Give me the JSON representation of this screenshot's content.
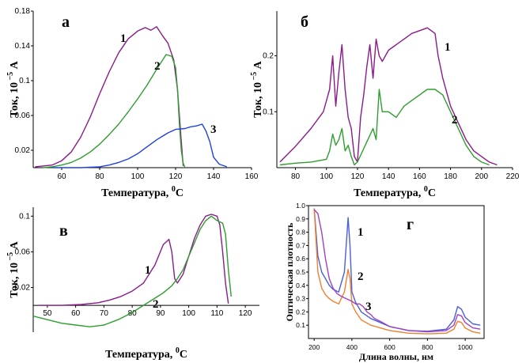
{
  "chart_data": [
    {
      "id": "a",
      "type": "line",
      "panel_letter": "а",
      "xlabel": "Температура, ",
      "xlabel_sup": "0",
      "xlabel_unit": "C",
      "ylabel": "Ток, 10",
      "ylabel_sup": " −5",
      "ylabel_unit": " А",
      "xlim": [
        45,
        160
      ],
      "ylim": [
        0,
        0.18
      ],
      "xticks": [
        60,
        80,
        100,
        120,
        140,
        160
      ],
      "yticks": [
        0.02,
        0.06,
        0.1,
        0.14,
        0.18
      ],
      "ytick_labels": [
        "0.02",
        "0.06",
        "0.1",
        "0.14",
        "0.18"
      ],
      "series": [
        {
          "label": "1",
          "color": "#8b1a8b",
          "x": [
            46,
            55,
            60,
            65,
            70,
            75,
            80,
            85,
            90,
            95,
            100,
            104,
            107,
            110,
            113,
            116,
            119,
            121,
            123,
            124
          ],
          "y": [
            0.001,
            0.003,
            0.008,
            0.018,
            0.035,
            0.058,
            0.085,
            0.11,
            0.132,
            0.148,
            0.157,
            0.161,
            0.158,
            0.162,
            0.152,
            0.143,
            0.124,
            0.09,
            0.03,
            0.002
          ]
        },
        {
          "label": "2",
          "color": "#2e9e2e",
          "x": [
            50,
            55,
            60,
            65,
            70,
            75,
            80,
            85,
            90,
            95,
            100,
            105,
            110,
            115,
            118,
            120,
            121,
            122,
            123,
            124,
            125
          ],
          "y": [
            0.0,
            0.001,
            0.003,
            0.006,
            0.011,
            0.018,
            0.027,
            0.038,
            0.05,
            0.064,
            0.079,
            0.095,
            0.113,
            0.13,
            0.128,
            0.115,
            0.09,
            0.05,
            0.02,
            0.005,
            0.0
          ]
        },
        {
          "label": "3",
          "color": "#2040e0",
          "x": [
            55,
            70,
            80,
            85,
            90,
            95,
            100,
            105,
            110,
            113,
            116,
            120,
            125,
            128,
            131,
            134,
            136,
            138,
            140,
            143,
            147
          ],
          "y": [
            0.0,
            0.0,
            0.001,
            0.003,
            0.006,
            0.01,
            0.016,
            0.024,
            0.032,
            0.036,
            0.04,
            0.044,
            0.045,
            0.047,
            0.048,
            0.05,
            0.042,
            0.03,
            0.012,
            0.004,
            0.001
          ]
        }
      ]
    },
    {
      "id": "b",
      "type": "line",
      "panel_letter": "б",
      "xlabel": "Температура, ",
      "xlabel_sup": "0",
      "xlabel_unit": "C",
      "ylabel": "Ток, 10",
      "ylabel_sup": " −5",
      "ylabel_unit": " А",
      "xlim": [
        68,
        220
      ],
      "ylim": [
        0,
        0.28
      ],
      "xticks": [
        80,
        100,
        120,
        140,
        160,
        180,
        200,
        220
      ],
      "yticks": [
        0.1,
        0.2
      ],
      "ytick_labels": [
        "0.1",
        "0.2"
      ],
      "series": [
        {
          "label": "1",
          "color": "#8b1a8b",
          "x": [
            70,
            80,
            90,
            98,
            102,
            104,
            106,
            108,
            110,
            112,
            114,
            116,
            118,
            120,
            122,
            124,
            126,
            128,
            130,
            132,
            134,
            136,
            140,
            145,
            150,
            155,
            160,
            165,
            170,
            172,
            175,
            180,
            185,
            190,
            195,
            200,
            205,
            210
          ],
          "y": [
            0.01,
            0.038,
            0.07,
            0.1,
            0.14,
            0.2,
            0.11,
            0.17,
            0.22,
            0.14,
            0.09,
            0.07,
            0.02,
            0.01,
            0.09,
            0.13,
            0.18,
            0.22,
            0.16,
            0.23,
            0.2,
            0.19,
            0.21,
            0.22,
            0.23,
            0.24,
            0.245,
            0.25,
            0.24,
            0.2,
            0.16,
            0.11,
            0.08,
            0.05,
            0.03,
            0.02,
            0.01,
            0.005
          ]
        },
        {
          "label": "2",
          "color": "#2e9e2e",
          "x": [
            70,
            80,
            90,
            100,
            102,
            104,
            106,
            108,
            110,
            112,
            114,
            116,
            118,
            120,
            125,
            130,
            132,
            134,
            136,
            140,
            145,
            150,
            155,
            160,
            165,
            170,
            175,
            180,
            185,
            190,
            195,
            200,
            205
          ],
          "y": [
            0.005,
            0.008,
            0.01,
            0.015,
            0.03,
            0.06,
            0.04,
            0.05,
            0.07,
            0.03,
            0.04,
            0.02,
            0.005,
            0.01,
            0.04,
            0.07,
            0.05,
            0.14,
            0.1,
            0.1,
            0.09,
            0.11,
            0.12,
            0.13,
            0.14,
            0.14,
            0.13,
            0.1,
            0.07,
            0.04,
            0.02,
            0.01,
            0.005
          ]
        }
      ]
    },
    {
      "id": "v",
      "type": "line",
      "panel_letter": "в",
      "xlabel": "Температура, ",
      "xlabel_sup": "0",
      "xlabel_unit": "C",
      "ylabel": "Ток, 10",
      "ylabel_sup": " −5",
      "ylabel_unit": " А",
      "xlim": [
        45,
        125
      ],
      "ylim": [
        -0.03,
        0.11
      ],
      "xticks": [
        50,
        60,
        70,
        80,
        90,
        100,
        110,
        120
      ],
      "yticks": [
        0.02,
        0.06,
        0.1
      ],
      "ytick_labels": [
        "0.02",
        "0.06",
        "0.1"
      ],
      "series": [
        {
          "label": "1",
          "color": "#8b1a8b",
          "x": [
            47,
            55,
            62,
            68,
            72,
            76,
            80,
            84,
            88,
            91,
            93,
            94,
            95,
            96,
            98,
            100,
            102,
            104,
            106,
            108,
            110,
            111,
            112,
            113,
            114
          ],
          "y": [
            0.0,
            0.0,
            0.001,
            0.003,
            0.006,
            0.01,
            0.016,
            0.025,
            0.045,
            0.068,
            0.074,
            0.06,
            0.03,
            0.025,
            0.035,
            0.055,
            0.075,
            0.09,
            0.1,
            0.102,
            0.1,
            0.09,
            0.06,
            0.025,
            0.002
          ]
        },
        {
          "label": "2",
          "color": "#2e9e2e",
          "x": [
            45,
            50,
            55,
            60,
            65,
            70,
            75,
            80,
            85,
            88,
            91,
            94,
            96,
            98,
            100,
            102,
            104,
            106,
            108,
            110,
            112,
            113,
            114,
            115
          ],
          "y": [
            -0.012,
            -0.016,
            -0.02,
            -0.022,
            -0.024,
            -0.022,
            -0.016,
            -0.008,
            0.002,
            0.008,
            0.014,
            0.022,
            0.03,
            0.04,
            0.055,
            0.07,
            0.085,
            0.095,
            0.1,
            0.095,
            0.092,
            0.08,
            0.04,
            0.01
          ]
        }
      ]
    },
    {
      "id": "g",
      "type": "line",
      "panel_letter": "г",
      "xlabel": "Длина волны, нм",
      "ylabel": "Оптическая плотность",
      "xlim": [
        170,
        1100
      ],
      "ylim": [
        0,
        1.0
      ],
      "xticks": [
        200,
        400,
        600,
        800,
        1000
      ],
      "yticks": [
        0.1,
        0.2,
        0.3,
        0.4,
        0.5,
        0.6,
        0.7,
        0.8,
        0.9,
        1.0
      ],
      "ytick_labels": [
        "0.1",
        "0.2",
        "0.3",
        "0.4",
        "0.5",
        "0.6",
        "0.7",
        "0.8",
        "0.9",
        "1.0"
      ],
      "series": [
        {
          "label": "1",
          "color": "#4a5ee0",
          "x": [
            200,
            220,
            240,
            260,
            280,
            300,
            330,
            360,
            380,
            390,
            400,
            420,
            450,
            500,
            550,
            600,
            700,
            800,
            900,
            940,
            960,
            980,
            1000,
            1040,
            1080
          ],
          "y": [
            0.98,
            0.62,
            0.5,
            0.45,
            0.4,
            0.37,
            0.35,
            0.5,
            0.91,
            0.7,
            0.35,
            0.27,
            0.2,
            0.15,
            0.12,
            0.09,
            0.06,
            0.055,
            0.07,
            0.14,
            0.24,
            0.22,
            0.16,
            0.11,
            0.1
          ]
        },
        {
          "label": "2",
          "color": "#f08030",
          "x": [
            200,
            220,
            240,
            260,
            280,
            300,
            330,
            360,
            380,
            390,
            400,
            420,
            450,
            500,
            550,
            600,
            700,
            800,
            900,
            940,
            960,
            980,
            1000,
            1040,
            1080
          ],
          "y": [
            0.98,
            0.5,
            0.38,
            0.33,
            0.3,
            0.28,
            0.26,
            0.35,
            0.52,
            0.45,
            0.26,
            0.2,
            0.14,
            0.1,
            0.08,
            0.06,
            0.04,
            0.035,
            0.04,
            0.07,
            0.13,
            0.12,
            0.08,
            0.05,
            0.04
          ]
        },
        {
          "label": "3",
          "color": "#a040c0",
          "x": [
            200,
            220,
            240,
            260,
            280,
            300,
            320,
            340,
            370,
            400,
            420,
            440,
            460,
            480,
            500,
            520,
            550,
            600,
            700,
            800,
            900,
            940,
            960,
            980,
            1000,
            1040,
            1080
          ],
          "y": [
            0.97,
            0.94,
            0.8,
            0.6,
            0.45,
            0.38,
            0.34,
            0.32,
            0.3,
            0.28,
            0.26,
            0.26,
            0.24,
            0.2,
            0.18,
            0.15,
            0.13,
            0.09,
            0.06,
            0.05,
            0.06,
            0.1,
            0.18,
            0.17,
            0.12,
            0.08,
            0.07
          ]
        }
      ]
    }
  ]
}
